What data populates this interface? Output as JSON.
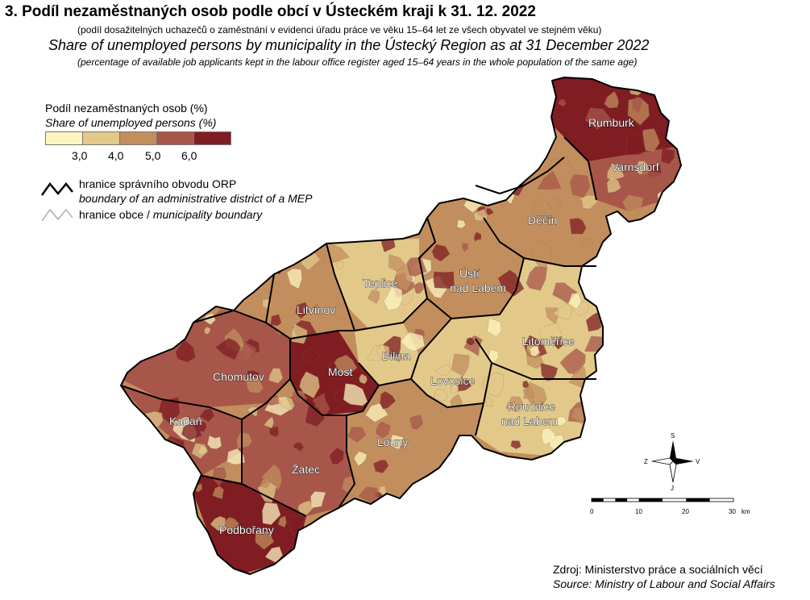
{
  "title": "3. Podíl nezaměstnaných osob podle obcí v Ústeckém kraji k 31. 12. 2022",
  "subtitle": "(podíl dosažitelných uchazečů o zaměstnání v evidenci úřadu práce ve věku 15–64 let ze všech obyvatel ve stejném věku)",
  "title_en": "Share of unemployed persons by municipality in the Ústecký Region as at 31 December 2022",
  "subtitle_en": "(percentage of available job applicants kept in the labour office register aged 15–64 years in the whole population of the same age)",
  "legend": {
    "title": "Podíl nezaměstnaných osob (%)",
    "title_en": "Share of unemployed persons (%)",
    "classes": [
      "#fdf5c0",
      "#e2c98a",
      "#c28e5e",
      "#a8564a",
      "#7f1d22"
    ],
    "ticks": [
      "3,0",
      "4,0",
      "5,0",
      "6,0"
    ],
    "orp_boundary": "hranice správního obvodu ORP",
    "orp_boundary_en": "boundary of an administrative district of a MEP",
    "municipality_boundary": "hranice obce",
    "municipality_boundary_sep": " / ",
    "municipality_boundary_en": "municipality boundary"
  },
  "districts": [
    {
      "name": "Rumburk",
      "level": 4
    },
    {
      "name": "Varnsdorf",
      "level": 3
    },
    {
      "name": "Děčín",
      "level": 2
    },
    {
      "name": "Ústí nad Labem",
      "level": 2
    },
    {
      "name": "Teplice",
      "level": 1
    },
    {
      "name": "Litvínov",
      "level": 2
    },
    {
      "name": "Litoměřice",
      "level": 1
    },
    {
      "name": "Bílina",
      "level": 1
    },
    {
      "name": "Chomutov",
      "level": 3
    },
    {
      "name": "Most",
      "level": 4
    },
    {
      "name": "Lovosice",
      "level": 1
    },
    {
      "name": "Roudnice nad Labem",
      "level": 1
    },
    {
      "name": "Kadaň",
      "level": 3
    },
    {
      "name": "Louny",
      "level": 2
    },
    {
      "name": "Žatec",
      "level": 3
    },
    {
      "name": "Podbořany",
      "level": 4
    }
  ],
  "labels": {
    "rumburk": "Rumburk",
    "varnsdorf": "Varnsdorf",
    "decin": "Děčín",
    "usti_1": "Ústí",
    "usti_2": "nad Labem",
    "teplice": "Teplice",
    "litvinov": "Litvínov",
    "litomerice": "Litoměřice",
    "bilina": "Bílina",
    "chomutov": "Chomutov",
    "most": "Most",
    "lovosice": "Lovosice",
    "roudnice_1": "Roudnice",
    "roudnice_2": "nad Labem",
    "kadan": "Kadaň",
    "louny": "Louny",
    "zatec": "Žatec",
    "podborany": "Podbořany"
  },
  "compass": {
    "north": "S",
    "south": "J",
    "west": "Z",
    "east": "V"
  },
  "scale": {
    "ticks": [
      "0",
      "10",
      "20",
      "30"
    ],
    "unit": "km"
  },
  "source": "Zdroj: Ministerstvo práce a sociálních věcí",
  "source_en": "Source: Ministry of Labour and Social Affairs"
}
